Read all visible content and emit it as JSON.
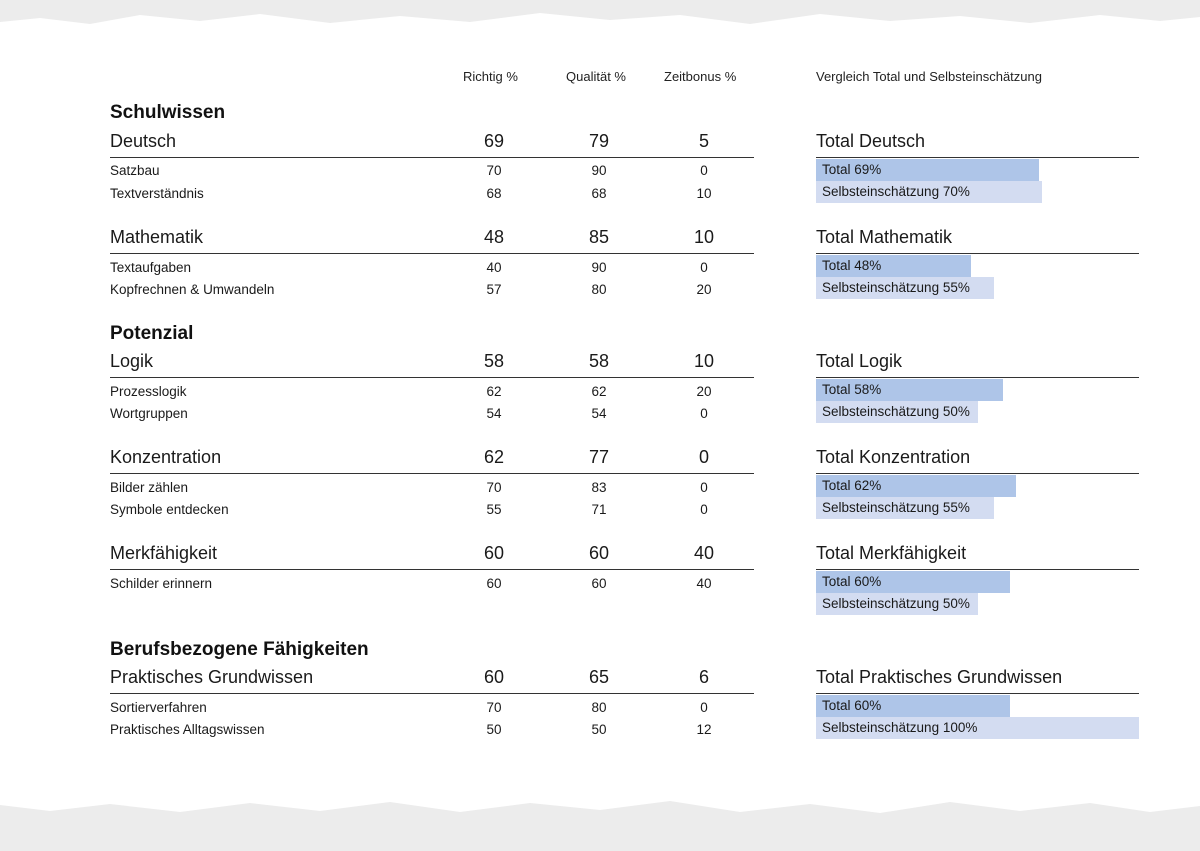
{
  "header": {
    "col_richtig": "Richtig  %",
    "col_qualitaet": "Qualität %",
    "col_zeitbonus": "Zeitbonus %",
    "col_vergleich": "Vergleich Total und Selbsteinschätzung"
  },
  "sections": [
    {
      "title": "Schulwissen",
      "groups": [
        {
          "name": "Deutsch",
          "richtig": "69",
          "qualitaet": "79",
          "zeitbonus": "5",
          "compare_title": "Total Deutsch",
          "total_label": "Total 69%",
          "total_pct": 69,
          "self_label": "Selbsteinschätzung 70%",
          "self_pct": 70,
          "subs": [
            {
              "name": "Satzbau",
              "richtig": "70",
              "qualitaet": "90",
              "zeitbonus": "0"
            },
            {
              "name": "Textverständnis",
              "richtig": "68",
              "qualitaet": "68",
              "zeitbonus": "10"
            }
          ]
        },
        {
          "name": "Mathematik",
          "richtig": "48",
          "qualitaet": "85",
          "zeitbonus": "10",
          "compare_title": "Total Mathematik",
          "total_label": "Total 48%",
          "total_pct": 48,
          "self_label": "Selbsteinschätzung 55%",
          "self_pct": 55,
          "subs": [
            {
              "name": "Textaufgaben",
              "richtig": "40",
              "qualitaet": "90",
              "zeitbonus": "0"
            },
            {
              "name": "Kopfrechnen & Umwandeln",
              "richtig": "57",
              "qualitaet": "80",
              "zeitbonus": "20"
            }
          ]
        }
      ]
    },
    {
      "title": "Potenzial",
      "groups": [
        {
          "name": "Logik",
          "richtig": "58",
          "qualitaet": "58",
          "zeitbonus": "10",
          "compare_title": "Total Logik",
          "total_label": "Total 58%",
          "total_pct": 58,
          "self_label": "Selbsteinschätzung 50%",
          "self_pct": 50,
          "subs": [
            {
              "name": "Prozesslogik",
              "richtig": "62",
              "qualitaet": "62",
              "zeitbonus": "20"
            },
            {
              "name": "Wortgruppen",
              "richtig": "54",
              "qualitaet": "54",
              "zeitbonus": "0"
            }
          ]
        },
        {
          "name": "Konzentration",
          "richtig": "62",
          "qualitaet": "77",
          "zeitbonus": "0",
          "compare_title": "Total Konzentration",
          "total_label": "Total 62%",
          "total_pct": 62,
          "self_label": "Selbsteinschätzung 55%",
          "self_pct": 55,
          "subs": [
            {
              "name": "Bilder zählen",
              "richtig": "70",
              "qualitaet": "83",
              "zeitbonus": "0"
            },
            {
              "name": "Symbole entdecken",
              "richtig": "55",
              "qualitaet": "71",
              "zeitbonus": "0"
            }
          ]
        },
        {
          "name": "Merkfähigkeit",
          "richtig": "60",
          "qualitaet": "60",
          "zeitbonus": "40",
          "compare_title": "Total Merkfähigkeit",
          "total_label": "Total 60%",
          "total_pct": 60,
          "self_label": "Selbsteinschätzung 50%",
          "self_pct": 50,
          "subs": [
            {
              "name": "Schilder erinnern",
              "richtig": "60",
              "qualitaet": "60",
              "zeitbonus": "40"
            }
          ]
        }
      ]
    },
    {
      "title": "Berufsbezogene Fähigkeiten",
      "groups": [
        {
          "name": "Praktisches Grundwissen",
          "richtig": "60",
          "qualitaet": "65",
          "zeitbonus": "6",
          "compare_title": "Total Praktisches Grundwissen",
          "total_label": "Total 60%",
          "total_pct": 60,
          "self_label": "Selbsteinschätzung 100%",
          "self_pct": 100,
          "subs": [
            {
              "name": "Sortierverfahren",
              "richtig": "70",
              "qualitaet": "80",
              "zeitbonus": "0"
            },
            {
              "name": "Praktisches Alltagswissen",
              "richtig": "50",
              "qualitaet": "50",
              "zeitbonus": "12"
            }
          ]
        }
      ]
    }
  ]
}
